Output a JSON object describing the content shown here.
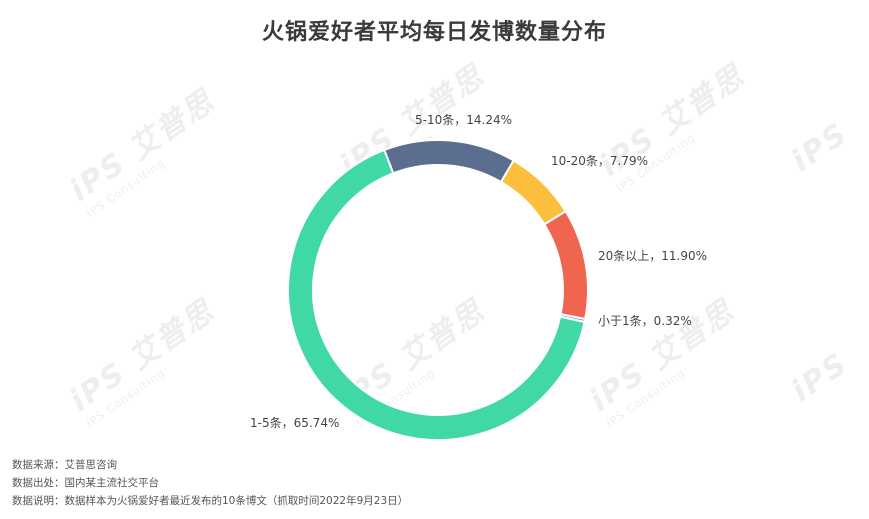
{
  "chart_data": {
    "type": "pie",
    "variant": "donut",
    "title": "火锅爱好者平均每日发博数量分布",
    "slices": [
      {
        "label": "5-10条",
        "value": 14.24,
        "label_text": "5-10条，14.24%",
        "color": "#5b6e8f"
      },
      {
        "label": "10-20条",
        "value": 7.79,
        "label_text": "10-20条，7.79%",
        "color": "#fbbf3b"
      },
      {
        "label": "20条以上",
        "value": 11.9,
        "label_text": "20条以上，11.90%",
        "color": "#f0654f"
      },
      {
        "label": "小于1条",
        "value": 0.32,
        "label_text": "小于1条，0.32%",
        "color": "#7aa2d6"
      },
      {
        "label": "1-5条",
        "value": 65.74,
        "label_text": "1-5条，65.74%",
        "color": "#3fd8a6"
      }
    ],
    "legend": "none"
  },
  "watermark": {
    "brand": "艾普思",
    "sub": "IPS Consulting",
    "logo": "iPS"
  },
  "notes": [
    "数据来源：艾普思咨询",
    "数据出处：国内某主流社交平台",
    "数据说明：数据样本为火锅爱好者最近发布的10条博文（抓取时间2022年9月23日）"
  ]
}
